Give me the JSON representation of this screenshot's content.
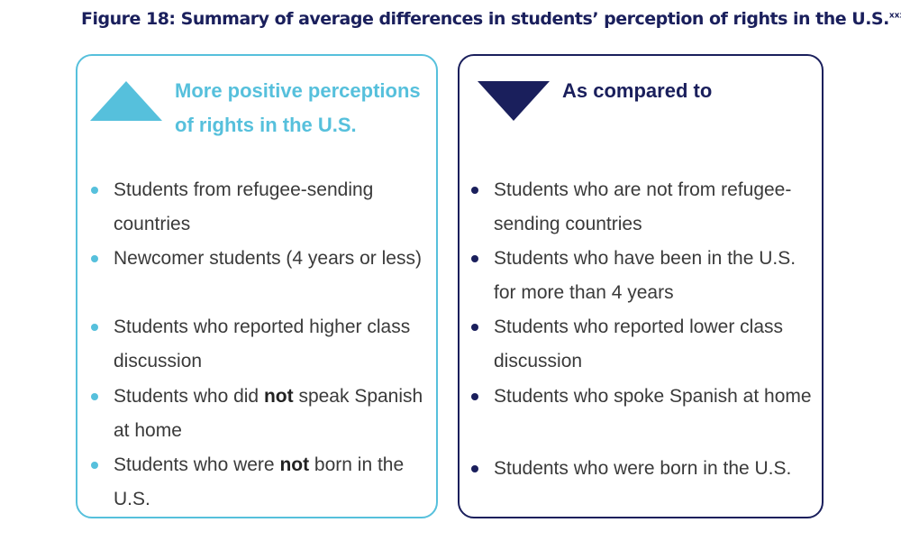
{
  "figure": {
    "title": "Figure 18: Summary of average differences in students’ perception of rights in the U.S.",
    "title_sup": "xxxv"
  },
  "colors": {
    "light_blue": "#56c0dc",
    "navy": "#1a1f5c"
  },
  "left_panel": {
    "icon": "triangle-up-icon",
    "heading": "More positive perceptions of rights in the U.S.",
    "items": [
      {
        "text": "Students from refugee-sending countries"
      },
      {
        "text": "Newcomer students (4 years or less)"
      },
      {
        "text": "Students who reported higher class discussion"
      },
      {
        "pre": "Students who did ",
        "bold": "not",
        "post": " speak Spanish at home"
      },
      {
        "pre": "Students who were ",
        "bold": "not",
        "post": " born in the U.S."
      }
    ]
  },
  "right_panel": {
    "icon": "triangle-down-icon",
    "heading": "As compared to",
    "items": [
      {
        "text": "Students who are not from refugee-sending countries"
      },
      {
        "text": "Students who have been in the U.S. for more than 4 years"
      },
      {
        "text": "Students who reported lower class discussion"
      },
      {
        "text": "Students who spoke Spanish at home"
      },
      {
        "text": "Students who were born in the U.S."
      }
    ]
  }
}
